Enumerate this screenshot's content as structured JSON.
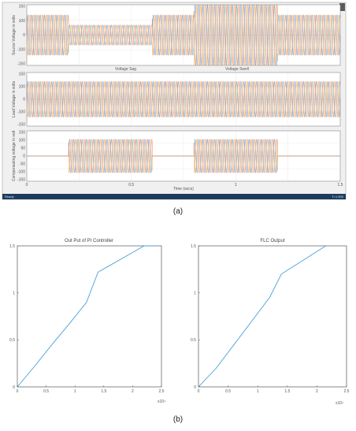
{
  "panel_a": {
    "caption": "(a)",
    "status": {
      "left": "Ready",
      "right": "T=1.500"
    },
    "annotations": [
      "Voltage Sag",
      "Voltage Swell"
    ],
    "xlabel": "Time (secs)"
  },
  "panel_b": {
    "caption": "(b)"
  },
  "chart_data": [
    {
      "type": "line",
      "ylabel": "Source Voltage in volts",
      "xlim": [
        0,
        1.5
      ],
      "ylim": [
        -150,
        150
      ],
      "yticks": [
        "150",
        "100",
        "0",
        "-100",
        "-150"
      ],
      "xticks": [],
      "series": [
        {
          "color": "#1f77d4",
          "amplitude_segments": [
            {
              "x0": 0,
              "x1": 0.2,
              "amp": 100
            },
            {
              "x0": 0.2,
              "x1": 0.6,
              "amp": 50
            },
            {
              "x0": 0.6,
              "x1": 0.8,
              "amp": 100
            },
            {
              "x0": 0.8,
              "x1": 1.2,
              "amp": 150
            },
            {
              "x0": 1.2,
              "x1": 1.5,
              "amp": 100
            }
          ],
          "phase": 0
        },
        {
          "color": "#e5532a",
          "amplitude_segments": [
            {
              "x0": 0,
              "x1": 0.2,
              "amp": 100
            },
            {
              "x0": 0.2,
              "x1": 0.6,
              "amp": 50
            },
            {
              "x0": 0.6,
              "x1": 0.8,
              "amp": 100
            },
            {
              "x0": 0.8,
              "x1": 1.2,
              "amp": 150
            },
            {
              "x0": 1.2,
              "x1": 1.5,
              "amp": 100
            }
          ],
          "phase": 120
        },
        {
          "color": "#e0a020",
          "amplitude_segments": [
            {
              "x0": 0,
              "x1": 0.2,
              "amp": 100
            },
            {
              "x0": 0.2,
              "x1": 0.6,
              "amp": 50
            },
            {
              "x0": 0.6,
              "x1": 0.8,
              "amp": 100
            },
            {
              "x0": 0.8,
              "x1": 1.2,
              "amp": 150
            },
            {
              "x0": 1.2,
              "x1": 1.5,
              "amp": 100
            }
          ],
          "phase": 240
        }
      ]
    },
    {
      "type": "line",
      "ylabel": "Load Voltage in volts",
      "xlim": [
        0,
        1.5
      ],
      "ylim": [
        -150,
        150
      ],
      "yticks": [
        "150",
        "100",
        "0",
        "-100",
        "-150"
      ],
      "xticks": [],
      "series": [
        {
          "color": "#1f77d4",
          "amplitude_segments": [
            {
              "x0": 0,
              "x1": 1.5,
              "amp": 100
            }
          ],
          "phase": 0
        },
        {
          "color": "#e5532a",
          "amplitude_segments": [
            {
              "x0": 0,
              "x1": 1.5,
              "amp": 100
            }
          ],
          "phase": 120
        },
        {
          "color": "#e0a020",
          "amplitude_segments": [
            {
              "x0": 0,
              "x1": 1.5,
              "amp": 100
            }
          ],
          "phase": 240
        }
      ]
    },
    {
      "type": "line",
      "ylabel": "Compensating voltage in volt",
      "xlabel": "Time (secs)",
      "xlim": [
        0,
        1.5
      ],
      "ylim": [
        -150,
        150
      ],
      "yticks": [
        "150",
        "100",
        "50",
        "0",
        "-50",
        "-100",
        "-150"
      ],
      "xticks": [
        "0",
        "0.5",
        "1",
        "1.5"
      ],
      "series": [
        {
          "color": "#1f77d4",
          "amplitude_segments": [
            {
              "x0": 0,
              "x1": 0.2,
              "amp": 0
            },
            {
              "x0": 0.2,
              "x1": 0.6,
              "amp": 100
            },
            {
              "x0": 0.6,
              "x1": 0.8,
              "amp": 0
            },
            {
              "x0": 0.8,
              "x1": 1.2,
              "amp": 100
            },
            {
              "x0": 1.2,
              "x1": 1.5,
              "amp": 0
            }
          ],
          "phase": 0
        },
        {
          "color": "#e5532a",
          "amplitude_segments": [
            {
              "x0": 0,
              "x1": 0.2,
              "amp": 0
            },
            {
              "x0": 0.2,
              "x1": 0.6,
              "amp": 100
            },
            {
              "x0": 0.6,
              "x1": 0.8,
              "amp": 0
            },
            {
              "x0": 0.8,
              "x1": 1.2,
              "amp": 100
            },
            {
              "x0": 1.2,
              "x1": 1.5,
              "amp": 0
            }
          ],
          "phase": 120
        },
        {
          "color": "#e0a020",
          "amplitude_segments": [
            {
              "x0": 0,
              "x1": 0.2,
              "amp": 0
            },
            {
              "x0": 0.2,
              "x1": 0.6,
              "amp": 100
            },
            {
              "x0": 0.6,
              "x1": 0.8,
              "amp": 0
            },
            {
              "x0": 0.8,
              "x1": 1.2,
              "amp": 100
            },
            {
              "x0": 1.2,
              "x1": 1.5,
              "amp": 0
            }
          ],
          "phase": 240
        }
      ]
    },
    {
      "type": "line",
      "title": "Out Put of PI Controller",
      "xlim": [
        0,
        2.5
      ],
      "ylim": [
        0,
        1.5
      ],
      "xticks": [
        "0",
        "0.5",
        "1",
        "1.5",
        "2",
        "2.5"
      ],
      "yticks": [
        "0",
        "0.5",
        "1",
        "1.5"
      ],
      "x_exponent": "x10⁴",
      "series": [
        {
          "color": "#4a9fd8",
          "x": [
            0,
            0.3,
            0.6,
            0.9,
            1.2,
            1.4,
            1.6,
            1.8,
            2.0,
            2.2,
            2.4
          ],
          "y": [
            0,
            0.22,
            0.45,
            0.67,
            0.9,
            1.22,
            1.29,
            1.36,
            1.43,
            1.5,
            1.57
          ]
        }
      ]
    },
    {
      "type": "line",
      "title": "FLC Output",
      "xlim": [
        0,
        2.5
      ],
      "ylim": [
        0,
        1.5
      ],
      "xticks": [
        "0",
        "0.5",
        "1",
        "1.5",
        "2",
        "2.5"
      ],
      "yticks": [
        "0",
        "0.5",
        "1",
        "1.5"
      ],
      "x_exponent": "x10⁴",
      "series": [
        {
          "color": "#4a9fd8",
          "x": [
            0,
            0.3,
            0.6,
            0.9,
            1.2,
            1.4,
            1.6,
            1.8,
            2.0,
            2.15
          ],
          "y": [
            0,
            0.2,
            0.45,
            0.7,
            0.95,
            1.2,
            1.28,
            1.36,
            1.44,
            1.5
          ]
        }
      ]
    }
  ]
}
